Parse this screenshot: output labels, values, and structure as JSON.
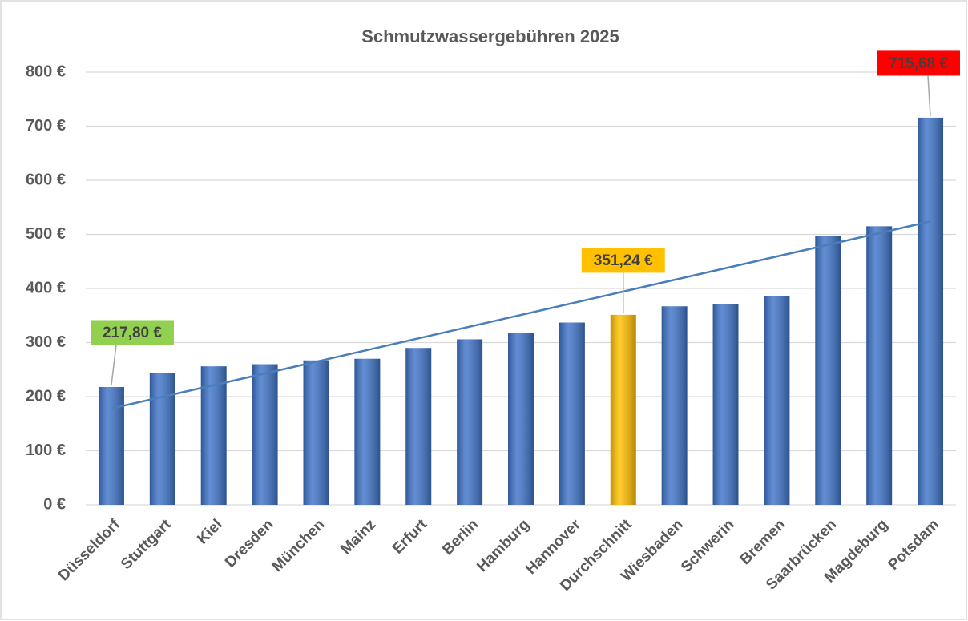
{
  "chart_data": {
    "type": "bar",
    "title": "Schmutzwassergebühren 2025",
    "categories": [
      "Düsseldorf",
      "Stuttgart",
      "Kiel",
      "Dresden",
      "München",
      "Mainz",
      "Erfurt",
      "Berlin",
      "Hamburg",
      "Hannover",
      "Durchschnitt",
      "Wiesbaden",
      "Schwerin",
      "Bremen",
      "Saarbrücken",
      "Magdeburg",
      "Potsdam"
    ],
    "values": [
      217.8,
      243,
      256,
      260,
      267,
      270,
      290,
      306,
      318,
      337,
      351.24,
      367,
      371,
      386,
      497,
      515,
      715.68
    ],
    "value_labels": [
      "217,80 €",
      null,
      null,
      null,
      null,
      null,
      null,
      null,
      null,
      null,
      "351,24 €",
      null,
      null,
      null,
      null,
      null,
      "715,68 €"
    ],
    "label_colors": [
      "#92d050",
      null,
      null,
      null,
      null,
      null,
      null,
      null,
      null,
      null,
      "#ffc000",
      null,
      null,
      null,
      null,
      null,
      "#ff0000"
    ],
    "colors": [
      "#3f74c9",
      "#3f74c9",
      "#3f74c9",
      "#3f74c9",
      "#3f74c9",
      "#3f74c9",
      "#3f74c9",
      "#3f74c9",
      "#3f74c9",
      "#3f74c9",
      "#ffc000",
      "#3f74c9",
      "#3f74c9",
      "#3f74c9",
      "#3f74c9",
      "#3f74c9",
      "#3f74c9"
    ],
    "ylim": [
      0,
      800
    ],
    "yticks": [
      {
        "value": 0,
        "label": "0 €"
      },
      {
        "value": 100,
        "label": "100 €"
      },
      {
        "value": 200,
        "label": "200 €"
      },
      {
        "value": 300,
        "label": "300 €"
      },
      {
        "value": 400,
        "label": "400 €"
      },
      {
        "value": 500,
        "label": "500 €"
      },
      {
        "value": 600,
        "label": "600 €"
      },
      {
        "value": 700,
        "label": "700 €"
      },
      {
        "value": 800,
        "label": "800 €"
      }
    ],
    "grid": true,
    "trendline": "linear",
    "trendline_color": "#4a7ebb"
  }
}
